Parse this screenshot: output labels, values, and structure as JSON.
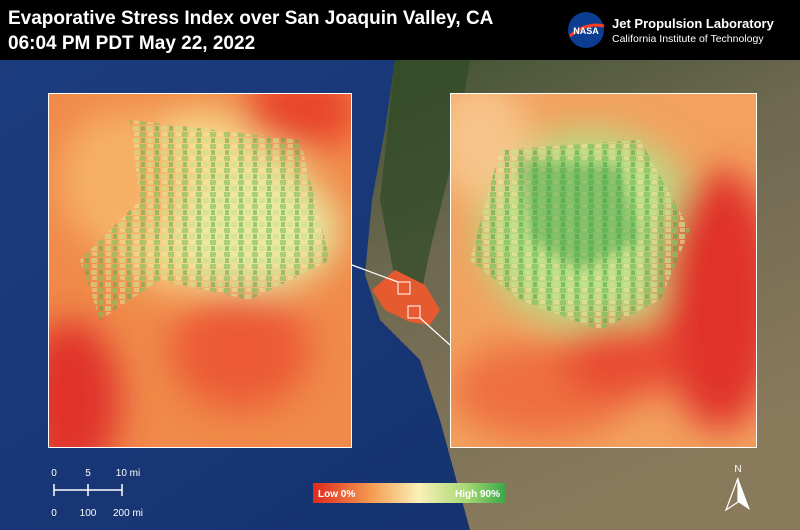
{
  "header": {
    "title": "Evaporative Stress Index over San Joaquin Valley, CA",
    "timestamp": "06:04 PM PDT May 22, 2022"
  },
  "logo": {
    "agency": "NASA",
    "lab": "Jet Propulsion Laboratory",
    "institute": "California Institute of Technology"
  },
  "scale_bar": {
    "top_labels": [
      "0",
      "5",
      "10 mi"
    ],
    "bottom_labels": [
      "0",
      "100",
      "200 mi"
    ]
  },
  "legend": {
    "low": "Low 0%",
    "high": "High 90%"
  },
  "north_arrow": {
    "label": "N"
  }
}
